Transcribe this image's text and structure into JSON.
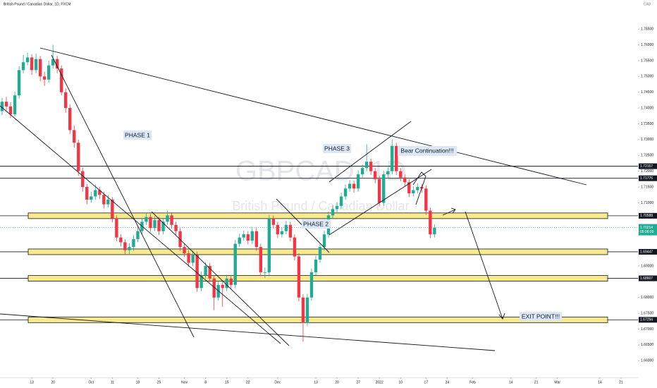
{
  "chart_data": {
    "type": "candlestick",
    "title": "British Pound / Canadian Dollar, 1D, FXCM",
    "watermark": "GBPCAD, 1D",
    "watermark_subtitle": "British Pound / Canadian Dollar",
    "currency": "CAD",
    "up_color": "#22ab94",
    "down_color": "#f23645",
    "grid": false,
    "xlim": [
      -0.5,
      150
    ],
    "ylim": [
      1.6547,
      1.7742
    ],
    "yticks": [
      {
        "value": 1.765,
        "label": "1.76500"
      },
      {
        "value": 1.76,
        "label": "1.76000"
      },
      {
        "value": 1.755,
        "label": "1.75500"
      },
      {
        "value": 1.75,
        "label": "1.75000"
      },
      {
        "value": 1.745,
        "label": "1.74500"
      },
      {
        "value": 1.74,
        "label": "1.74000"
      },
      {
        "value": 1.735,
        "label": "1.73500"
      },
      {
        "value": 1.73,
        "label": "1.73000"
      },
      {
        "value": 1.725,
        "label": "1.72500"
      },
      {
        "value": 1.72,
        "label": "1.72000"
      },
      {
        "value": 1.715,
        "label": "1.71500"
      },
      {
        "value": 1.71,
        "label": "1.71000"
      },
      {
        "value": 1.7,
        "label": "1.70000"
      },
      {
        "value": 1.69,
        "label": "1.69000"
      },
      {
        "value": 1.68,
        "label": "1.68000"
      },
      {
        "value": 1.675,
        "label": "1.67500"
      },
      {
        "value": 1.67,
        "label": "1.67000"
      },
      {
        "value": 1.665,
        "label": "1.66500"
      },
      {
        "value": 1.66,
        "label": "1.66000"
      }
    ],
    "xticks": [
      {
        "value": 7,
        "label": "13"
      },
      {
        "value": 12,
        "label": "20"
      },
      {
        "value": 21,
        "label": "Oct"
      },
      {
        "value": 26,
        "label": "11"
      },
      {
        "value": 32,
        "label": "18"
      },
      {
        "value": 37,
        "label": "25"
      },
      {
        "value": 43,
        "label": "Nov"
      },
      {
        "value": 48,
        "label": "8"
      },
      {
        "value": 53,
        "label": "15"
      },
      {
        "value": 58,
        "label": "22"
      },
      {
        "value": 65,
        "label": "Dec"
      },
      {
        "value": 74,
        "label": "13"
      },
      {
        "value": 79,
        "label": "20"
      },
      {
        "value": 84,
        "label": "27"
      },
      {
        "value": 89,
        "label": "2022"
      },
      {
        "value": 94,
        "label": "10"
      },
      {
        "value": 100,
        "label": "17"
      },
      {
        "value": 105,
        "label": "24"
      },
      {
        "value": 111,
        "label": "Feb"
      },
      {
        "value": 120,
        "label": "14"
      },
      {
        "value": 126,
        "label": "21"
      },
      {
        "value": 131,
        "label": "Mar"
      },
      {
        "value": 141,
        "label": "14"
      },
      {
        "value": 146,
        "label": "21"
      }
    ],
    "ohlc": [
      [
        1.739,
        1.7432,
        1.7378,
        1.742
      ],
      [
        1.742,
        1.7435,
        1.7392,
        1.7405
      ],
      [
        1.7405,
        1.7418,
        1.7368,
        1.738
      ],
      [
        1.738,
        1.7452,
        1.7372,
        1.744
      ],
      [
        1.744,
        1.7532,
        1.743,
        1.752
      ],
      [
        1.752,
        1.7568,
        1.751,
        1.7545
      ],
      [
        1.7545,
        1.7575,
        1.7535,
        1.756
      ],
      [
        1.756,
        1.757,
        1.7505,
        1.752
      ],
      [
        1.752,
        1.7572,
        1.751,
        1.7555
      ],
      [
        1.7555,
        1.7565,
        1.7485,
        1.75
      ],
      [
        1.75,
        1.7515,
        1.747,
        1.749
      ],
      [
        1.749,
        1.755,
        1.748,
        1.7535
      ],
      [
        1.7535,
        1.76,
        1.7525,
        1.7555
      ],
      [
        1.7555,
        1.7565,
        1.751,
        1.7525
      ],
      [
        1.7525,
        1.7535,
        1.744,
        1.745
      ],
      [
        1.745,
        1.7462,
        1.7385,
        1.74
      ],
      [
        1.74,
        1.7412,
        1.7318,
        1.733
      ],
      [
        1.733,
        1.7345,
        1.7275,
        1.729
      ],
      [
        1.729,
        1.73,
        1.7185,
        1.72
      ],
      [
        1.72,
        1.7212,
        1.7135,
        1.715
      ],
      [
        1.715,
        1.716,
        1.7095,
        1.711
      ],
      [
        1.711,
        1.7135,
        1.71,
        1.712
      ],
      [
        1.712,
        1.7158,
        1.711,
        1.714
      ],
      [
        1.714,
        1.715,
        1.7112,
        1.7125
      ],
      [
        1.7125,
        1.7135,
        1.7082,
        1.7095
      ],
      [
        1.7095,
        1.7125,
        1.7085,
        1.711
      ],
      [
        1.711,
        1.7118,
        1.7038,
        1.705
      ],
      [
        1.705,
        1.706,
        1.6978,
        1.699
      ],
      [
        1.699,
        1.7,
        1.6962,
        1.6975
      ],
      [
        1.6975,
        1.6985,
        1.6935,
        1.695
      ],
      [
        1.695,
        1.6972,
        1.6938,
        1.696
      ],
      [
        1.696,
        1.6998,
        1.6948,
        1.6985
      ],
      [
        1.6985,
        1.7025,
        1.6975,
        1.701
      ],
      [
        1.701,
        1.7052,
        1.7,
        1.704
      ],
      [
        1.704,
        1.7068,
        1.703,
        1.7055
      ],
      [
        1.7055,
        1.7065,
        1.7008,
        1.702
      ],
      [
        1.702,
        1.7058,
        1.701,
        1.7045
      ],
      [
        1.7045,
        1.7055,
        1.6998,
        1.701
      ],
      [
        1.701,
        1.7052,
        1.7,
        1.704
      ],
      [
        1.704,
        1.7075,
        1.703,
        1.706
      ],
      [
        1.706,
        1.707,
        1.7018,
        1.703
      ],
      [
        1.703,
        1.704,
        1.6998,
        1.701
      ],
      [
        1.701,
        1.702,
        1.6948,
        1.696
      ],
      [
        1.696,
        1.6972,
        1.6928,
        1.694
      ],
      [
        1.694,
        1.695,
        1.6898,
        1.691
      ],
      [
        1.691,
        1.6948,
        1.69,
        1.6935
      ],
      [
        1.6935,
        1.6945,
        1.6818,
        1.683
      ],
      [
        1.683,
        1.6882,
        1.682,
        1.687
      ],
      [
        1.687,
        1.6912,
        1.686,
        1.69
      ],
      [
        1.69,
        1.691,
        1.6848,
        1.686
      ],
      [
        1.686,
        1.687,
        1.676,
        1.68
      ],
      [
        1.68,
        1.6852,
        1.679,
        1.684
      ],
      [
        1.684,
        1.685,
        1.677,
        1.683
      ],
      [
        1.683,
        1.6872,
        1.682,
        1.686
      ],
      [
        1.686,
        1.687,
        1.6828,
        1.684
      ],
      [
        1.684,
        1.6982,
        1.683,
        1.697
      ],
      [
        1.697,
        1.7002,
        1.696,
        1.699
      ],
      [
        1.699,
        1.7012,
        1.698,
        1.7
      ],
      [
        1.7,
        1.701,
        1.6968,
        1.698
      ],
      [
        1.698,
        1.7022,
        1.697,
        1.701
      ],
      [
        1.701,
        1.702,
        1.6948,
        1.696
      ],
      [
        1.696,
        1.697,
        1.6868,
        1.688
      ],
      [
        1.688,
        1.6895,
        1.6862,
        1.688
      ],
      [
        1.688,
        1.7062,
        1.687,
        1.705
      ],
      [
        1.705,
        1.706,
        1.7018,
        1.703
      ],
      [
        1.703,
        1.704,
        1.6988,
        1.7
      ],
      [
        1.7,
        1.7022,
        1.699,
        1.701
      ],
      [
        1.701,
        1.7042,
        1.7,
        1.703
      ],
      [
        1.703,
        1.704,
        1.6978,
        1.699
      ],
      [
        1.699,
        1.7,
        1.6918,
        1.693
      ],
      [
        1.693,
        1.694,
        1.6788,
        1.68
      ],
      [
        1.68,
        1.681,
        1.666,
        1.672
      ],
      [
        1.672,
        1.6812,
        1.671,
        1.68
      ],
      [
        1.68,
        1.6892,
        1.679,
        1.688
      ],
      [
        1.688,
        1.6932,
        1.687,
        1.692
      ],
      [
        1.692,
        1.6972,
        1.691,
        1.696
      ],
      [
        1.696,
        1.7012,
        1.695,
        1.7
      ],
      [
        1.7,
        1.7072,
        1.699,
        1.706
      ],
      [
        1.706,
        1.7092,
        1.705,
        1.708
      ],
      [
        1.708,
        1.7102,
        1.707,
        1.709
      ],
      [
        1.709,
        1.7132,
        1.708,
        1.712
      ],
      [
        1.712,
        1.7158,
        1.711,
        1.7145
      ],
      [
        1.7145,
        1.7172,
        1.7135,
        1.716
      ],
      [
        1.716,
        1.717,
        1.7132,
        1.7145
      ],
      [
        1.7145,
        1.7202,
        1.7135,
        1.719
      ],
      [
        1.719,
        1.7222,
        1.718,
        1.721
      ],
      [
        1.721,
        1.7285,
        1.72,
        1.723
      ],
      [
        1.723,
        1.724,
        1.7188,
        1.72
      ],
      [
        1.72,
        1.721,
        1.7162,
        1.7175
      ],
      [
        1.7175,
        1.7185,
        1.7088,
        1.71
      ],
      [
        1.71,
        1.7202,
        1.709,
        1.719
      ],
      [
        1.719,
        1.7212,
        1.718,
        1.72
      ],
      [
        1.72,
        1.73,
        1.719,
        1.728
      ],
      [
        1.728,
        1.729,
        1.7188,
        1.72
      ],
      [
        1.72,
        1.721,
        1.7168,
        1.718
      ],
      [
        1.718,
        1.719,
        1.7152,
        1.7165
      ],
      [
        1.7165,
        1.7175,
        1.7118,
        1.713
      ],
      [
        1.713,
        1.7152,
        1.712,
        1.714
      ],
      [
        1.714,
        1.7162,
        1.713,
        1.715
      ],
      [
        1.715,
        1.716,
        1.7132,
        1.7145
      ],
      [
        1.7145,
        1.7155,
        1.7062,
        1.7075
      ],
      [
        1.7075,
        1.7085,
        1.6988,
        1.7
      ],
      [
        1.7,
        1.7032,
        1.699,
        1.7021
      ]
    ],
    "levels": [
      {
        "price": 1.72157,
        "kind": "line"
      },
      {
        "price": 1.71776,
        "kind": "line"
      },
      {
        "price": 1.70588,
        "kind": "zone"
      },
      {
        "price": 1.69447,
        "kind": "zone"
      },
      {
        "price": 1.68607,
        "kind": "zone"
      },
      {
        "price": 1.67294,
        "kind": "zone"
      }
    ],
    "last_price": 1.70214,
    "countdown": "05:06:00",
    "annotations": {
      "phase1": "PHASE 1",
      "phase2": "PHASE 2",
      "phase3": "PHASE 3",
      "bear": "Bear Continuation!!!",
      "exit": "EXIT POINT!!!"
    }
  }
}
